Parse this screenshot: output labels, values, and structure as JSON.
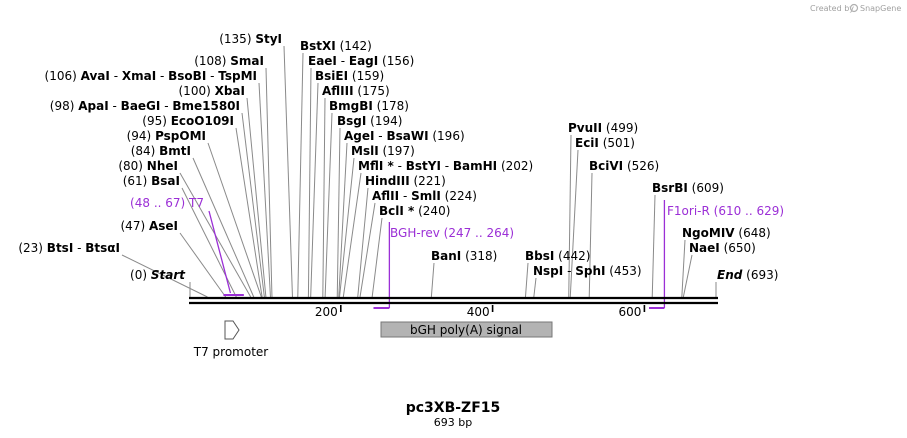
{
  "watermark": "Created by",
  "brand": "SnapGene",
  "plasmid": {
    "name": "pc3XB-ZF15",
    "length_label": "693 bp",
    "length": 693
  },
  "axis": {
    "ticks": [
      {
        "value": 200,
        "label": "200"
      },
      {
        "value": 400,
        "label": "400"
      },
      {
        "value": 600,
        "label": "600"
      }
    ]
  },
  "start_label": {
    "pos": 0,
    "pos_text": "(0)",
    "name": "Start"
  },
  "end_label": {
    "pos": 693,
    "pos_text": "(693)",
    "name": "End"
  },
  "sites": [
    {
      "id": "btsi",
      "pos": 23,
      "left": true,
      "pos_text": "(23)",
      "names": [
        "BtsI",
        "BtsαI"
      ]
    },
    {
      "id": "asei",
      "pos": 47,
      "left": true,
      "pos_text": "(47)",
      "names": [
        "AseI"
      ]
    },
    {
      "id": "bsai",
      "pos": 61,
      "left": true,
      "pos_text": "(61)",
      "names": [
        "BsaI"
      ]
    },
    {
      "id": "nhei",
      "pos": 80,
      "left": true,
      "pos_text": "(80)",
      "names": [
        "NheI"
      ]
    },
    {
      "id": "bmti",
      "pos": 84,
      "left": true,
      "pos_text": "(84)",
      "names": [
        "BmtI"
      ]
    },
    {
      "id": "pspomi",
      "pos": 94,
      "left": true,
      "pos_text": "(94)",
      "names": [
        "PspOMI"
      ]
    },
    {
      "id": "ecoo109i",
      "pos": 95,
      "left": true,
      "pos_text": "(95)",
      "names": [
        "EcoO109I"
      ]
    },
    {
      "id": "apai",
      "pos": 98,
      "left": true,
      "pos_text": "(98)",
      "names": [
        "ApaI",
        "BaeGI",
        "Bme1580I"
      ]
    },
    {
      "id": "xbai",
      "pos": 100,
      "left": true,
      "pos_text": "(100)",
      "names": [
        "XbaI"
      ]
    },
    {
      "id": "avai",
      "pos": 106,
      "left": true,
      "pos_text": "(106)",
      "names": [
        "AvaI",
        "XmaI",
        "BsoBI",
        "TspMI"
      ]
    },
    {
      "id": "smai",
      "pos": 108,
      "left": true,
      "pos_text": "(108)",
      "names": [
        "SmaI"
      ]
    },
    {
      "id": "styi",
      "pos": 135,
      "left": true,
      "pos_text": "(135)",
      "names": [
        "StyI"
      ]
    },
    {
      "id": "bstxi",
      "pos": 142,
      "left": false,
      "pos_text": "(142)",
      "names": [
        "BstXI"
      ]
    },
    {
      "id": "eaei",
      "pos": 156,
      "left": false,
      "pos_text": "(156)",
      "names": [
        "EaeI",
        "EagI"
      ]
    },
    {
      "id": "bsiei",
      "pos": 159,
      "left": false,
      "pos_text": "(159)",
      "names": [
        "BsiEI"
      ]
    },
    {
      "id": "afliii",
      "pos": 175,
      "left": false,
      "pos_text": "(175)",
      "names": [
        "AflIII"
      ]
    },
    {
      "id": "bmgbi",
      "pos": 178,
      "left": false,
      "pos_text": "(178)",
      "names": [
        "BmgBI"
      ]
    },
    {
      "id": "bsgi",
      "pos": 194,
      "left": false,
      "pos_text": "(194)",
      "names": [
        "BsgI"
      ]
    },
    {
      "id": "agei",
      "pos": 196,
      "left": false,
      "pos_text": "(196)",
      "names": [
        "AgeI",
        "BsaWI"
      ]
    },
    {
      "id": "msli",
      "pos": 197,
      "left": false,
      "pos_text": "(197)",
      "names": [
        "MslI"
      ]
    },
    {
      "id": "mfli",
      "pos": 202,
      "left": false,
      "pos_text": "(202)",
      "names": [
        "MflI *",
        "BstYI",
        "BamHI"
      ]
    },
    {
      "id": "hindiii",
      "pos": 221,
      "left": false,
      "pos_text": "(221)",
      "names": [
        "HindIII"
      ]
    },
    {
      "id": "aflii",
      "pos": 224,
      "left": false,
      "pos_text": "(224)",
      "names": [
        "AflII",
        "SmlI"
      ]
    },
    {
      "id": "bcli",
      "pos": 240,
      "left": false,
      "pos_text": "(240)",
      "names": [
        "BclI *"
      ]
    },
    {
      "id": "bani",
      "pos": 318,
      "left": false,
      "pos_text": "(318)",
      "names": [
        "BanI"
      ]
    },
    {
      "id": "bbsi",
      "pos": 442,
      "left": false,
      "pos_text": "(442)",
      "names": [
        "BbsI"
      ]
    },
    {
      "id": "nspi",
      "pos": 453,
      "left": false,
      "pos_text": "(453)",
      "names": [
        "NspI",
        "SphI"
      ]
    },
    {
      "id": "pvuii",
      "pos": 499,
      "left": false,
      "pos_text": "(499)",
      "names": [
        "PvuII"
      ]
    },
    {
      "id": "ecii",
      "pos": 501,
      "left": false,
      "pos_text": "(501)",
      "names": [
        "EciI"
      ]
    },
    {
      "id": "bcivi",
      "pos": 526,
      "left": false,
      "pos_text": "(526)",
      "names": [
        "BciVI"
      ]
    },
    {
      "id": "bsrbi",
      "pos": 609,
      "left": false,
      "pos_text": "(609)",
      "names": [
        "BsrBI"
      ]
    },
    {
      "id": "ngomiv",
      "pos": 648,
      "left": false,
      "pos_text": "(648)",
      "names": [
        "NgoMIV"
      ]
    },
    {
      "id": "naei",
      "pos": 650,
      "left": false,
      "pos_text": "(650)",
      "names": [
        "NaeI"
      ]
    }
  ],
  "primers": [
    {
      "id": "t7",
      "name": "T7",
      "range_text": "(48 .. 67)",
      "start": 48,
      "end": 67,
      "left": true
    },
    {
      "id": "bgh-rev",
      "name": "BGH-rev",
      "range_text": "(247 .. 264)",
      "start": 247,
      "end": 264,
      "left": false
    },
    {
      "id": "f1ori-r",
      "name": "F1ori-R",
      "range_text": "(610 .. 629)",
      "start": 610,
      "end": 629,
      "left": false
    }
  ],
  "features": [
    {
      "id": "bgh-polya",
      "name": "bGH poly(A) signal",
      "start": 250,
      "end": 475,
      "type": "box"
    },
    {
      "id": "t7-promoter",
      "name": "T7 promoter",
      "start": 50,
      "end": 68,
      "type": "arrow"
    }
  ],
  "colors": {
    "primer": "#9b2fd6",
    "feature_fill": "#b3b3b3",
    "leader": "#8a8a8a"
  }
}
